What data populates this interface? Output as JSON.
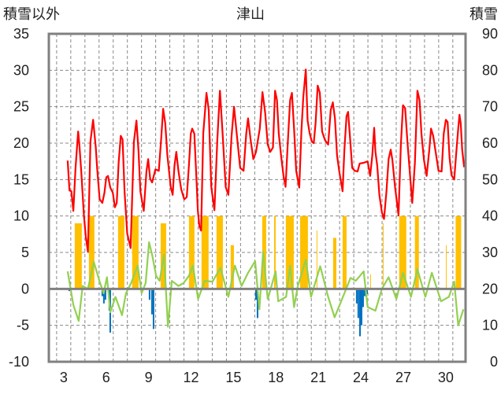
{
  "chart_data": {
    "type": "line",
    "title": "津山",
    "ylabel_left": "積雪以外",
    "ylabel_right": "積雪",
    "xlim": [
      1.95,
      31.4
    ],
    "ylim_left": [
      -10,
      35
    ],
    "ylim_right": [
      0,
      90
    ],
    "x_ticks": [
      3,
      6,
      9,
      12,
      15,
      18,
      21,
      24,
      27,
      30
    ],
    "y_ticks_left": [
      -10,
      -5,
      0,
      5,
      10,
      15,
      20,
      25,
      30,
      35
    ],
    "y_ticks_right": [
      0,
      10,
      20,
      30,
      40,
      50,
      60,
      70,
      80,
      90
    ],
    "grid": true,
    "colors": {
      "red": "#FF0000",
      "green": "#92D050",
      "yellow": "#FFC000",
      "blue": "#0070C0",
      "axis": "#808080"
    },
    "series": [
      {
        "name": "red",
        "type": "line",
        "points": [
          [
            3.28,
            17.6
          ],
          [
            3.41,
            13.5
          ],
          [
            3.54,
            13.4
          ],
          [
            3.68,
            10.7
          ],
          [
            3.84,
            16.6
          ],
          [
            4.02,
            21.6
          ],
          [
            4.1,
            20
          ],
          [
            4.24,
            16.2
          ],
          [
            4.43,
            10.1
          ],
          [
            4.56,
            7.2
          ],
          [
            4.71,
            5.1
          ],
          [
            4.89,
            20.2
          ],
          [
            5.08,
            23.2
          ],
          [
            5.27,
            19.4
          ],
          [
            5.36,
            16.6
          ],
          [
            5.54,
            12.3
          ],
          [
            5.73,
            11.8
          ],
          [
            5.88,
            13.2
          ],
          [
            6.01,
            15.3
          ],
          [
            6.13,
            15.5
          ],
          [
            6.29,
            13.9
          ],
          [
            6.47,
            13.2
          ],
          [
            6.62,
            11.2
          ],
          [
            6.75,
            11.8
          ],
          [
            6.88,
            17.3
          ],
          [
            7.03,
            21
          ],
          [
            7.16,
            20.5
          ],
          [
            7.3,
            13.4
          ],
          [
            7.49,
            7.6
          ],
          [
            7.73,
            5.6
          ],
          [
            7.96,
            20.2
          ],
          [
            8.14,
            23.1
          ],
          [
            8.29,
            18.8
          ],
          [
            8.42,
            13.4
          ],
          [
            8.66,
            10.7
          ],
          [
            8.85,
            16.1
          ],
          [
            8.97,
            17.8
          ],
          [
            9.11,
            15.1
          ],
          [
            9.25,
            14.6
          ],
          [
            9.48,
            16.4
          ],
          [
            9.72,
            16.2
          ],
          [
            9.9,
            20.9
          ],
          [
            10.03,
            24.7
          ],
          [
            10.18,
            22.7
          ],
          [
            10.33,
            18.3
          ],
          [
            10.56,
            14
          ],
          [
            10.7,
            12.9
          ],
          [
            10.83,
            16.9
          ],
          [
            10.96,
            18.8
          ],
          [
            11.11,
            16.2
          ],
          [
            11.3,
            13.7
          ],
          [
            11.52,
            12.3
          ],
          [
            11.7,
            12.6
          ],
          [
            11.85,
            16.9
          ],
          [
            11.98,
            21.3
          ],
          [
            12.08,
            22
          ],
          [
            12.23,
            21.3
          ],
          [
            12.41,
            13.9
          ],
          [
            12.48,
            10.8
          ],
          [
            12.59,
            8.6
          ],
          [
            12.71,
            8
          ],
          [
            12.86,
            21.3
          ],
          [
            13.09,
            26.9
          ],
          [
            13.25,
            24.5
          ],
          [
            13.43,
            14
          ],
          [
            13.65,
            10.8
          ],
          [
            13.86,
            20.5
          ],
          [
            14.04,
            27.2
          ],
          [
            14.23,
            21.3
          ],
          [
            14.45,
            14
          ],
          [
            14.64,
            12.9
          ],
          [
            14.86,
            20.9
          ],
          [
            15.04,
            25
          ],
          [
            15.23,
            21.3
          ],
          [
            15.47,
            16.6
          ],
          [
            15.71,
            16.2
          ],
          [
            15.9,
            21.3
          ],
          [
            16.03,
            23.4
          ],
          [
            16.21,
            20.5
          ],
          [
            16.4,
            17.8
          ],
          [
            16.59,
            18.8
          ],
          [
            16.86,
            22
          ],
          [
            17.05,
            27
          ],
          [
            17.24,
            24.2
          ],
          [
            17.42,
            19.8
          ],
          [
            17.6,
            18.8
          ],
          [
            17.79,
            19.4
          ],
          [
            17.94,
            27.2
          ],
          [
            18.07,
            25.9
          ],
          [
            18.2,
            21.3
          ],
          [
            18.38,
            18
          ],
          [
            18.53,
            15.6
          ],
          [
            18.68,
            14
          ],
          [
            18.83,
            19.8
          ],
          [
            19.0,
            25.9
          ],
          [
            19.13,
            26.9
          ],
          [
            19.28,
            22
          ],
          [
            19.43,
            16.2
          ],
          [
            19.65,
            13.9
          ],
          [
            19.8,
            21.6
          ],
          [
            19.93,
            26.3
          ],
          [
            20.11,
            30.1
          ],
          [
            20.24,
            23.1
          ],
          [
            20.39,
            21.3
          ],
          [
            20.54,
            20.2
          ],
          [
            20.67,
            20
          ],
          [
            20.8,
            22.7
          ],
          [
            20.95,
            27.9
          ],
          [
            21.1,
            26.9
          ],
          [
            21.26,
            21.6
          ],
          [
            21.47,
            20.4
          ],
          [
            21.69,
            19.8
          ],
          [
            21.87,
            24.5
          ],
          [
            22.02,
            25.6
          ],
          [
            22.17,
            23.4
          ],
          [
            22.32,
            18.3
          ],
          [
            22.49,
            15.9
          ],
          [
            22.71,
            13.4
          ],
          [
            22.84,
            19.1
          ],
          [
            22.99,
            23.7
          ],
          [
            23.1,
            24.3
          ],
          [
            23.27,
            19.8
          ],
          [
            23.39,
            16.6
          ],
          [
            23.58,
            16.2
          ],
          [
            23.77,
            16.1
          ],
          [
            23.92,
            17.2
          ],
          [
            24.2,
            17.3
          ],
          [
            24.48,
            17.5
          ],
          [
            24.66,
            15.5
          ],
          [
            24.81,
            18.3
          ],
          [
            24.94,
            22.1
          ],
          [
            25.03,
            18.8
          ],
          [
            25.16,
            16.9
          ],
          [
            25.31,
            12.9
          ],
          [
            25.49,
            10.5
          ],
          [
            25.64,
            9.6
          ],
          [
            25.81,
            13.4
          ],
          [
            25.96,
            17.8
          ],
          [
            26.11,
            19.1
          ],
          [
            26.23,
            17.7
          ],
          [
            26.42,
            14
          ],
          [
            26.66,
            10.1
          ],
          [
            26.83,
            19.8
          ],
          [
            26.98,
            25.2
          ],
          [
            27.13,
            24.8
          ],
          [
            27.29,
            20.2
          ],
          [
            27.48,
            15.5
          ],
          [
            27.63,
            11.8
          ],
          [
            27.82,
            17.3
          ],
          [
            28.0,
            27.2
          ],
          [
            28.15,
            25.9
          ],
          [
            28.28,
            21.3
          ],
          [
            28.46,
            17.7
          ],
          [
            28.65,
            15.5
          ],
          [
            28.84,
            19.1
          ],
          [
            28.96,
            22
          ],
          [
            29.11,
            21
          ],
          [
            29.26,
            19.1
          ],
          [
            29.49,
            16.2
          ],
          [
            29.71,
            16.1
          ],
          [
            29.86,
            21.3
          ],
          [
            30.01,
            23.2
          ],
          [
            30.13,
            22.9
          ],
          [
            30.27,
            18
          ],
          [
            30.41,
            15.6
          ],
          [
            30.6,
            15
          ],
          [
            30.75,
            18.8
          ],
          [
            30.88,
            22
          ],
          [
            30.97,
            23.9
          ],
          [
            31.06,
            22.7
          ],
          [
            31.16,
            19.1
          ],
          [
            31.3,
            16.7
          ]
        ]
      },
      {
        "name": "green",
        "type": "line",
        "points": [
          [
            3.28,
            2.4
          ],
          [
            3.68,
            -2.2
          ],
          [
            4.06,
            -4.4
          ],
          [
            4.34,
            0.4
          ],
          [
            4.71,
            0
          ],
          [
            5.13,
            3.7
          ],
          [
            5.54,
            1
          ],
          [
            5.82,
            -0.6
          ],
          [
            6.06,
            1.6
          ],
          [
            6.29,
            -3.2
          ],
          [
            6.66,
            -1.1
          ],
          [
            7.12,
            -3.6
          ],
          [
            7.4,
            -0.6
          ],
          [
            7.77,
            0.8
          ],
          [
            8.23,
            3.2
          ],
          [
            8.51,
            -0.6
          ],
          [
            8.79,
            0.8
          ],
          [
            9.03,
            6.4
          ],
          [
            9.25,
            4.7
          ],
          [
            9.53,
            1.8
          ],
          [
            9.78,
            1.1
          ],
          [
            10.09,
            4.7
          ],
          [
            10.37,
            -5.2
          ],
          [
            10.64,
            1.1
          ],
          [
            11.11,
            0.4
          ],
          [
            11.48,
            0.8
          ],
          [
            11.85,
            1.8
          ],
          [
            12.13,
            3.2
          ],
          [
            12.5,
            -1.4
          ],
          [
            12.97,
            1.1
          ],
          [
            13.52,
            1
          ],
          [
            14.08,
            2.9
          ],
          [
            14.64,
            -1.1
          ],
          [
            15.1,
            3.2
          ],
          [
            15.57,
            0.4
          ],
          [
            16.03,
            2.2
          ],
          [
            16.53,
            3.8
          ],
          [
            16.83,
            -2.8
          ],
          [
            17.09,
            5.1
          ],
          [
            17.42,
            -1.4
          ],
          [
            17.98,
            2.4
          ],
          [
            18.16,
            -1.7
          ],
          [
            18.72,
            -1.1
          ],
          [
            19.0,
            3.2
          ],
          [
            19.28,
            -2.5
          ],
          [
            19.55,
            0.4
          ],
          [
            20.11,
            4
          ],
          [
            20.48,
            -1.1
          ],
          [
            21.13,
            3.1
          ],
          [
            21.69,
            -1.1
          ],
          [
            22.15,
            -3.9
          ],
          [
            22.61,
            -1.7
          ],
          [
            23.27,
            1.5
          ],
          [
            23.64,
            1.1
          ],
          [
            24.2,
            2.4
          ],
          [
            24.48,
            -2.5
          ],
          [
            25.03,
            -3
          ],
          [
            25.49,
            0
          ],
          [
            25.96,
            1.6
          ],
          [
            26.51,
            -1.4
          ],
          [
            26.98,
            2.2
          ],
          [
            27.54,
            -1.1
          ],
          [
            28.0,
            2.7
          ],
          [
            28.56,
            -1.1
          ],
          [
            29.02,
            2.2
          ],
          [
            29.67,
            -1.7
          ],
          [
            30.22,
            -1.1
          ],
          [
            30.6,
            1
          ],
          [
            30.88,
            -5
          ],
          [
            31.25,
            -2.8
          ]
        ]
      },
      {
        "name": "yellow",
        "type": "bar",
        "ranges": [
          [
            3.78,
            4.28,
            9
          ],
          [
            4.78,
            5.17,
            10
          ],
          [
            6.84,
            7.29,
            10
          ],
          [
            7.84,
            8.29,
            10
          ],
          [
            9.85,
            10.24,
            9
          ],
          [
            11.85,
            12.24,
            10
          ],
          [
            12.74,
            13.24,
            10
          ],
          [
            13.8,
            14.25,
            10
          ],
          [
            14.8,
            15.03,
            6
          ],
          [
            17.03,
            17.31,
            10
          ],
          [
            17.87,
            17.98,
            10
          ],
          [
            18.7,
            19.26,
            10
          ],
          [
            19.71,
            20.26,
            10
          ],
          [
            20.87,
            20.92,
            8
          ],
          [
            22.04,
            22.27,
            7
          ],
          [
            22.71,
            22.99,
            10
          ],
          [
            24.66,
            24.7,
            2
          ],
          [
            25.55,
            25.59,
            9
          ],
          [
            26.71,
            27.21,
            10
          ],
          [
            27.82,
            28.1,
            10
          ],
          [
            30.01,
            30.05,
            6
          ],
          [
            30.7,
            31.09,
            10
          ]
        ]
      },
      {
        "name": "blue",
        "type": "bar",
        "points": [
          [
            3.39,
            -0.3
          ],
          [
            5.73,
            -1
          ],
          [
            5.84,
            -2
          ],
          [
            5.95,
            -1.5
          ],
          [
            6.23,
            -3
          ],
          [
            6.29,
            -6
          ],
          [
            9.07,
            -1.5
          ],
          [
            9.24,
            -3.5
          ],
          [
            9.35,
            -5.5
          ],
          [
            16.59,
            -1.5
          ],
          [
            16.7,
            -4
          ],
          [
            23.71,
            -2
          ],
          [
            23.82,
            -4
          ],
          [
            23.94,
            -6.5
          ],
          [
            24.05,
            -5
          ],
          [
            24.16,
            -2.5
          ],
          [
            24.27,
            -1
          ],
          [
            24.44,
            -0.7
          ]
        ]
      }
    ]
  }
}
